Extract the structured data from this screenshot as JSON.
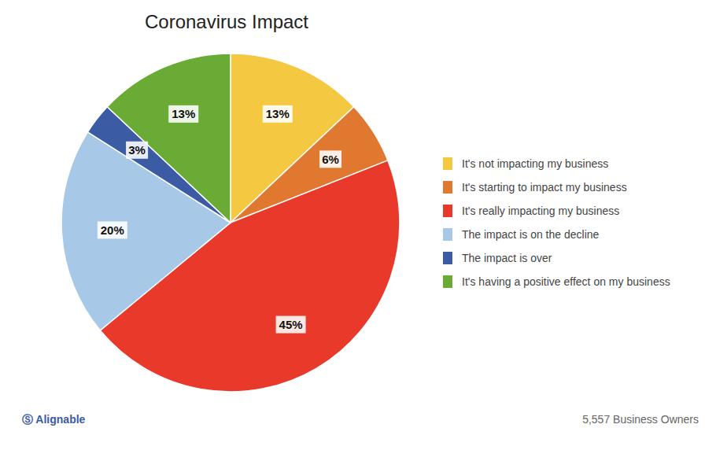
{
  "chart_data": {
    "type": "pie",
    "title": "Coronavirus Impact",
    "categories": [
      "It's not impacting my business",
      "It's starting to impact my business",
      "It's really impacting my business",
      "The impact is on the decline",
      "The impact is over",
      "It's having a positive effect on my business"
    ],
    "values": [
      13,
      6,
      45,
      20,
      3,
      13
    ],
    "value_labels": [
      "13%",
      "6%",
      "45%",
      "20%",
      "3%",
      "13%"
    ],
    "colors": [
      "#F5C842",
      "#E07830",
      "#E8392A",
      "#A8C8E8",
      "#3B5BA5",
      "#6AAB35"
    ],
    "data_labels": true,
    "legend": "right",
    "annotations": [
      "Ⓢ Alignable",
      "5,557 Business Owners"
    ]
  }
}
